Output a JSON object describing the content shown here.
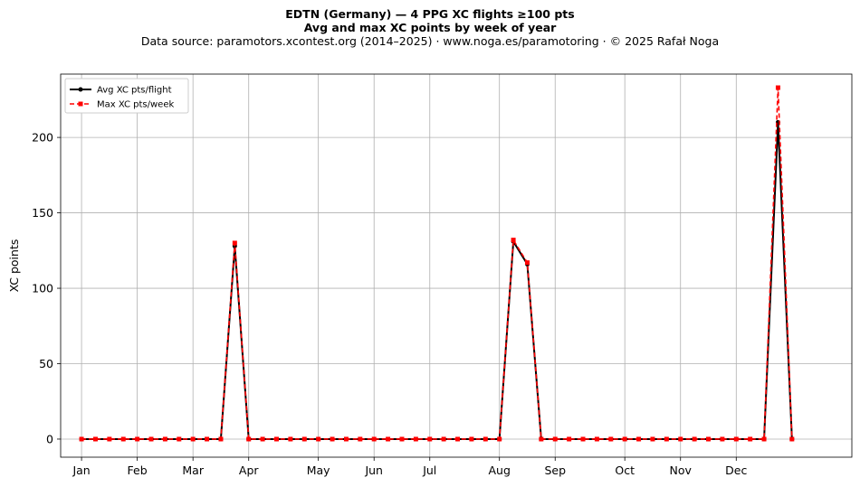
{
  "chart_data": {
    "type": "line",
    "title_line1": "EDTN (Germany)  —  4 PPG XC flights ≥100 pts",
    "title_line2": "Avg and max XC points by week of year",
    "subtitle": "Data source: paramotors.xcontest.org (2014–2025)  ·  www.noga.es/paramotoring  ·  © 2025 Rafał Noga",
    "xlabel": "",
    "ylabel": "XC points",
    "xlim": [
      -1.5,
      55.3
    ],
    "ylim": [
      -12,
      242
    ],
    "grid": true,
    "legend_position": "top-left",
    "y_ticks": [
      0,
      50,
      100,
      150,
      200
    ],
    "x_ticks": [
      {
        "label": "Jan",
        "week": 0
      },
      {
        "label": "Feb",
        "week": 4
      },
      {
        "label": "Mar",
        "week": 8
      },
      {
        "label": "Apr",
        "week": 12
      },
      {
        "label": "May",
        "week": 17
      },
      {
        "label": "Jun",
        "week": 21
      },
      {
        "label": "Jul",
        "week": 25
      },
      {
        "label": "Aug",
        "week": 30
      },
      {
        "label": "Sep",
        "week": 34
      },
      {
        "label": "Oct",
        "week": 39
      },
      {
        "label": "Nov",
        "week": 43
      },
      {
        "label": "Dec",
        "week": 47
      }
    ],
    "x": [
      0,
      1,
      2,
      3,
      4,
      5,
      6,
      7,
      8,
      9,
      10,
      11,
      12,
      13,
      14,
      15,
      16,
      17,
      18,
      19,
      20,
      21,
      22,
      23,
      24,
      25,
      26,
      27,
      28,
      29,
      30,
      31,
      32,
      33,
      34,
      35,
      36,
      37,
      38,
      39,
      40,
      41,
      42,
      43,
      44,
      45,
      46,
      47,
      48,
      49,
      50,
      51
    ],
    "series": [
      {
        "name": "Avg XC pts/flight",
        "color": "#000000",
        "style": "solid-dot",
        "values": [
          0,
          0,
          0,
          0,
          0,
          0,
          0,
          0,
          0,
          0,
          0,
          128,
          0,
          0,
          0,
          0,
          0,
          0,
          0,
          0,
          0,
          0,
          0,
          0,
          0,
          0,
          0,
          0,
          0,
          0,
          0,
          131,
          116,
          0,
          0,
          0,
          0,
          0,
          0,
          0,
          0,
          0,
          0,
          0,
          0,
          0,
          0,
          0,
          0,
          0,
          210,
          0
        ]
      },
      {
        "name": "Max XC pts/week",
        "color": "#ff0000",
        "style": "dashed-square",
        "values": [
          0,
          0,
          0,
          0,
          0,
          0,
          0,
          0,
          0,
          0,
          0,
          130,
          0,
          0,
          0,
          0,
          0,
          0,
          0,
          0,
          0,
          0,
          0,
          0,
          0,
          0,
          0,
          0,
          0,
          0,
          0,
          132,
          117,
          0,
          0,
          0,
          0,
          0,
          0,
          0,
          0,
          0,
          0,
          0,
          0,
          0,
          0,
          0,
          0,
          0,
          233,
          0
        ]
      }
    ]
  }
}
